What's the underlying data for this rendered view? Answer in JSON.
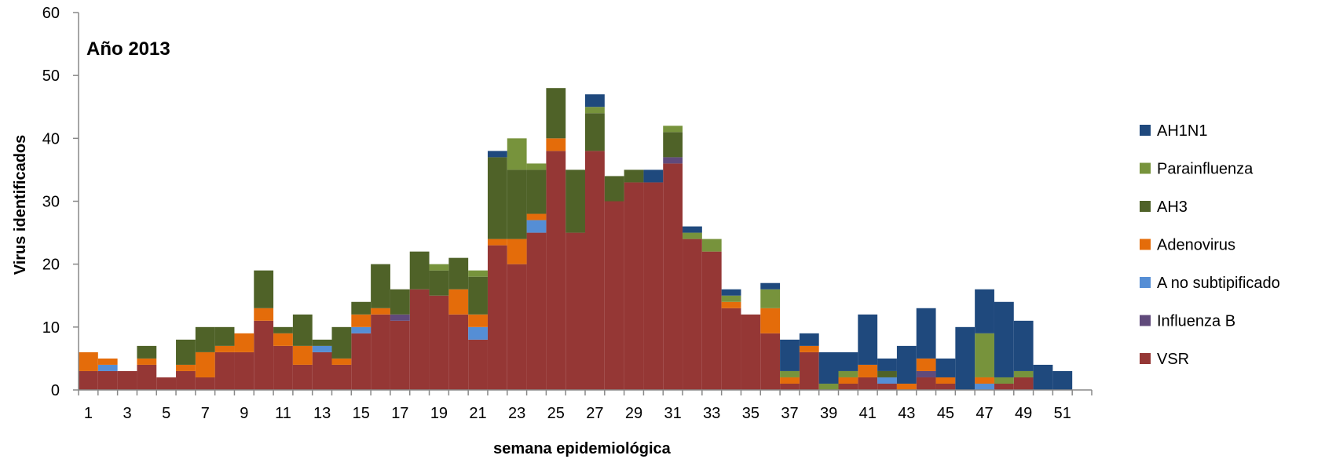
{
  "chart_data": {
    "type": "bar",
    "stacked": true,
    "title": "Año 2013",
    "xlabel": "semana epidemiológica",
    "ylabel": "Virus identificados",
    "ylim": [
      0,
      60
    ],
    "y_ticks": [
      "0",
      "10",
      "20",
      "30",
      "40",
      "50",
      "60"
    ],
    "x_tick_labels": [
      "1",
      "3",
      "5",
      "7",
      "9",
      "11",
      "13",
      "15",
      "17",
      "19",
      "21",
      "23",
      "25",
      "27",
      "29",
      "31",
      "33",
      "35",
      "37",
      "39",
      "41",
      "43",
      "45",
      "47",
      "49",
      "51"
    ],
    "grid": false,
    "legend_position": "right",
    "categories": [
      "1",
      "2",
      "3",
      "4",
      "5",
      "6",
      "7",
      "8",
      "9",
      "10",
      "11",
      "12",
      "13",
      "14",
      "15",
      "16",
      "17",
      "18",
      "19",
      "20",
      "21",
      "22",
      "23",
      "24",
      "25",
      "26",
      "27",
      "28",
      "29",
      "30",
      "31",
      "32",
      "33",
      "34",
      "35",
      "36",
      "37",
      "38",
      "39",
      "40",
      "41",
      "42",
      "43",
      "44",
      "45",
      "46",
      "47",
      "48",
      "49",
      "50",
      "51",
      "52"
    ],
    "series": [
      {
        "name": "VSR",
        "color": "#953735",
        "values": [
          3,
          3,
          3,
          4,
          2,
          3,
          2,
          6,
          6,
          11,
          7,
          4,
          6,
          4,
          9,
          12,
          11,
          16,
          15,
          12,
          8,
          23,
          20,
          25,
          38,
          25,
          38,
          30,
          33,
          33,
          36,
          24,
          22,
          13,
          12,
          9,
          1,
          6,
          0,
          1,
          2,
          1,
          0,
          2,
          1,
          0,
          0,
          1,
          2,
          0,
          0,
          0
        ]
      },
      {
        "name": "Influenza B",
        "color": "#604a7b",
        "values": [
          0,
          0,
          0,
          0,
          0,
          0,
          0,
          0,
          0,
          0,
          0,
          0,
          0,
          0,
          0,
          0,
          1,
          0,
          0,
          0,
          0,
          0,
          0,
          0,
          0,
          0,
          0,
          0,
          0,
          0,
          1,
          0,
          0,
          0,
          0,
          0,
          0,
          0,
          0,
          0,
          0,
          0,
          0,
          1,
          0,
          0,
          0,
          0,
          0,
          0,
          0,
          0
        ]
      },
      {
        "name": "A no subtipificado",
        "color": "#558ed5",
        "values": [
          0,
          1,
          0,
          0,
          0,
          0,
          0,
          0,
          0,
          0,
          0,
          0,
          1,
          0,
          1,
          0,
          0,
          0,
          0,
          0,
          2,
          0,
          0,
          2,
          0,
          0,
          0,
          0,
          0,
          0,
          0,
          0,
          0,
          0,
          0,
          0,
          0,
          0,
          0,
          0,
          0,
          1,
          0,
          0,
          0,
          0,
          1,
          0,
          0,
          0,
          0,
          0
        ]
      },
      {
        "name": "Adenovirus",
        "color": "#e46c0a",
        "values": [
          3,
          1,
          0,
          1,
          0,
          1,
          4,
          1,
          3,
          2,
          2,
          3,
          0,
          1,
          2,
          1,
          0,
          0,
          0,
          4,
          2,
          1,
          4,
          1,
          2,
          0,
          0,
          0,
          0,
          0,
          0,
          0,
          0,
          1,
          0,
          4,
          1,
          1,
          0,
          1,
          2,
          0,
          1,
          2,
          1,
          0,
          1,
          0,
          0,
          0,
          0,
          0
        ]
      },
      {
        "name": "AH3",
        "color": "#4f6228",
        "values": [
          0,
          0,
          0,
          2,
          0,
          4,
          4,
          3,
          0,
          6,
          1,
          5,
          1,
          5,
          2,
          7,
          4,
          6,
          4,
          5,
          6,
          13,
          11,
          7,
          8,
          10,
          6,
          4,
          2,
          0,
          4,
          0,
          0,
          0,
          0,
          0,
          0,
          0,
          0,
          0,
          0,
          1,
          0,
          0,
          0,
          0,
          0,
          0,
          0,
          0,
          0,
          0
        ]
      },
      {
        "name": "Parainfluenza",
        "color": "#77933c",
        "values": [
          0,
          0,
          0,
          0,
          0,
          0,
          0,
          0,
          0,
          0,
          0,
          0,
          0,
          0,
          0,
          0,
          0,
          0,
          1,
          0,
          1,
          0,
          5,
          1,
          0,
          0,
          1,
          0,
          0,
          0,
          1,
          1,
          2,
          1,
          0,
          3,
          1,
          0,
          1,
          1,
          0,
          0,
          0,
          0,
          0,
          0,
          7,
          1,
          1,
          0,
          0,
          0
        ]
      },
      {
        "name": "AH1N1",
        "color": "#1f497d",
        "values": [
          0,
          0,
          0,
          0,
          0,
          0,
          0,
          0,
          0,
          0,
          0,
          0,
          0,
          0,
          0,
          0,
          0,
          0,
          0,
          0,
          0,
          1,
          0,
          0,
          0,
          0,
          2,
          0,
          0,
          2,
          0,
          1,
          0,
          1,
          0,
          1,
          5,
          2,
          5,
          3,
          8,
          2,
          6,
          8,
          3,
          10,
          7,
          12,
          8,
          4,
          3,
          0
        ]
      }
    ],
    "legend_order": [
      "AH1N1",
      "Parainfluenza",
      "AH3",
      "Adenovirus",
      "A no subtipificado",
      "Influenza B",
      "VSR"
    ]
  }
}
